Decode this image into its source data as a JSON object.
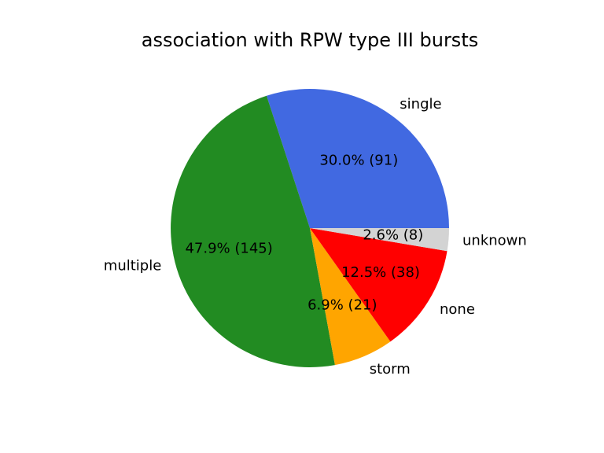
{
  "chart_data": {
    "type": "pie",
    "title": "association with RPW type III bursts",
    "slices": [
      {
        "label": "single",
        "value": 91,
        "percent_label": "30.0%  (91)",
        "color": "#4169e1"
      },
      {
        "label": "multiple",
        "value": 145,
        "percent_label": "47.9%  (145)",
        "color": "#228b22"
      },
      {
        "label": "storm",
        "value": 21,
        "percent_label": "6.9%  (21)",
        "color": "#ffa500"
      },
      {
        "label": "none",
        "value": 38,
        "percent_label": "12.5%  (38)",
        "color": "#ff0000"
      },
      {
        "label": "unknown",
        "value": 8,
        "percent_label": "2.6%  (8)",
        "color": "#d3d3d3"
      }
    ],
    "start_angle_deg": 0,
    "direction": "counterclockwise",
    "legend": "none"
  }
}
